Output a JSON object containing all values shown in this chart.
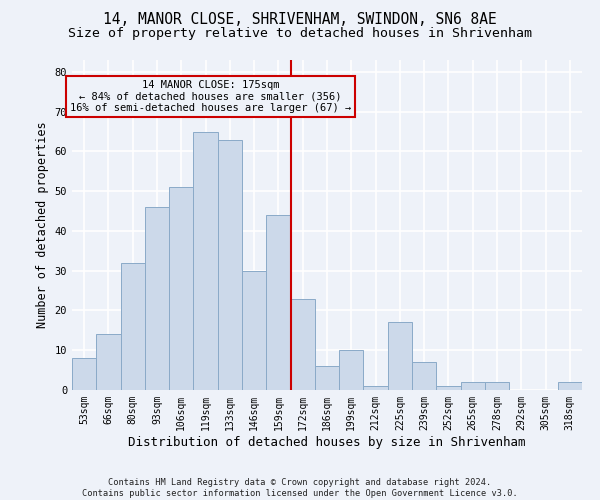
{
  "title1": "14, MANOR CLOSE, SHRIVENHAM, SWINDON, SN6 8AE",
  "title2": "Size of property relative to detached houses in Shrivenham",
  "xlabel": "Distribution of detached houses by size in Shrivenham",
  "ylabel": "Number of detached properties",
  "categories": [
    "53sqm",
    "66sqm",
    "80sqm",
    "93sqm",
    "106sqm",
    "119sqm",
    "133sqm",
    "146sqm",
    "159sqm",
    "172sqm",
    "186sqm",
    "199sqm",
    "212sqm",
    "225sqm",
    "239sqm",
    "252sqm",
    "265sqm",
    "278sqm",
    "292sqm",
    "305sqm",
    "318sqm"
  ],
  "bar_heights": [
    8,
    14,
    32,
    46,
    51,
    65,
    63,
    30,
    44,
    23,
    6,
    10,
    1,
    17,
    7,
    1,
    2,
    2,
    0,
    0,
    2
  ],
  "bar_color": "#ccd9ea",
  "bar_edge_color": "#8aaac8",
  "bar_width": 1.0,
  "ylim": [
    0,
    83
  ],
  "yticks": [
    0,
    10,
    20,
    30,
    40,
    50,
    60,
    70,
    80
  ],
  "vline_x": 8.5,
  "vline_color": "#cc0000",
  "annotation_text": "14 MANOR CLOSE: 175sqm\n← 84% of detached houses are smaller (356)\n16% of semi-detached houses are larger (67) →",
  "footer": "Contains HM Land Registry data © Crown copyright and database right 2024.\nContains public sector information licensed under the Open Government Licence v3.0.",
  "bg_color": "#eef2f9",
  "grid_color": "#ffffff",
  "title1_fontsize": 10.5,
  "title2_fontsize": 9.5,
  "tick_fontsize": 7,
  "ylabel_fontsize": 8.5,
  "xlabel_fontsize": 9,
  "footer_fontsize": 6.2,
  "annotation_fontsize": 7.5
}
